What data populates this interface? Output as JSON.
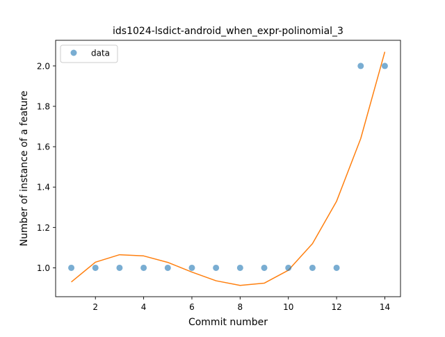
{
  "chart_data": {
    "type": "scatter",
    "title": "ids1024-lsdict-android_when_expr-polinomial_3",
    "xlabel": "Commit number",
    "ylabel": "Number of instance of a feature",
    "xlim": [
      0.35,
      14.65
    ],
    "ylim": [
      0.857,
      2.127
    ],
    "xticks": [
      2,
      4,
      6,
      8,
      10,
      12,
      14
    ],
    "yticks": [
      1.0,
      1.2,
      1.4,
      1.6,
      1.8,
      2.0
    ],
    "xtick_labels": [
      "2",
      "4",
      "6",
      "8",
      "10",
      "12",
      "14"
    ],
    "ytick_labels": [
      "1.0",
      "1.2",
      "1.4",
      "1.6",
      "1.8",
      "2.0"
    ],
    "grid": false,
    "legend": {
      "placement": "top-left",
      "entries": [
        "data"
      ]
    },
    "series": [
      {
        "name": "data",
        "kind": "scatter",
        "color": "#1f77b4",
        "x": [
          1,
          2,
          3,
          4,
          5,
          6,
          7,
          8,
          9,
          10,
          11,
          12,
          13,
          14
        ],
        "y": [
          1,
          1,
          1,
          1,
          1,
          1,
          1,
          1,
          1,
          1,
          1,
          1,
          2,
          2
        ]
      },
      {
        "kind": "line",
        "color": "#ff7f0e",
        "x": [
          1,
          2,
          3,
          4,
          5,
          6,
          7,
          8,
          9,
          10,
          11,
          12,
          13,
          14
        ],
        "y": [
          0.93,
          1.028,
          1.065,
          1.059,
          1.027,
          0.979,
          0.936,
          0.913,
          0.924,
          0.988,
          1.12,
          1.33,
          1.64,
          2.07
        ]
      }
    ]
  }
}
